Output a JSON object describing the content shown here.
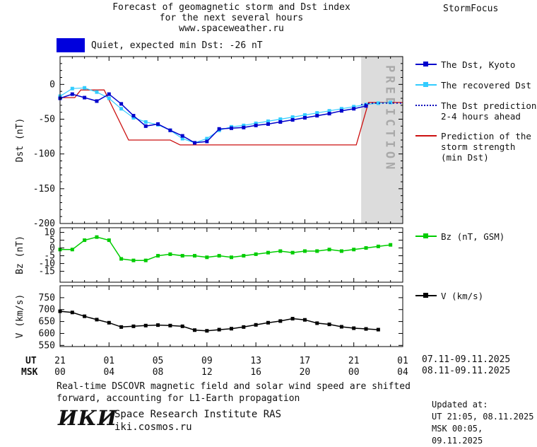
{
  "header": {
    "title_line1": "Forecast of geomagnetic storm and Dst index",
    "title_line2": "for the next several hours",
    "title_line3": "www.spaceweather.ru",
    "brand": "StormFocus"
  },
  "status": {
    "swatch_color": "#0000dd",
    "label": "Quiet, expected min Dst: -26 nT"
  },
  "legend": {
    "items": [
      {
        "name": "dst-kyoto",
        "color": "#0000cc",
        "style": "solid",
        "marker": true,
        "lines": [
          "The Dst, Kyoto"
        ]
      },
      {
        "name": "recovered-dst",
        "color": "#33ccff",
        "style": "solid",
        "marker": true,
        "lines": [
          "The recovered Dst"
        ]
      },
      {
        "name": "dst-prediction",
        "color": "#0000bb",
        "style": "dotted",
        "marker": false,
        "lines": [
          "The Dst prediction",
          "2-4 hours ahead"
        ]
      },
      {
        "name": "storm-strength",
        "color": "#cc1111",
        "style": "solid",
        "marker": false,
        "lines": [
          "Prediction of the",
          "storm strength",
          "(min Dst)"
        ]
      },
      {
        "name": "bz",
        "color": "#00cc00",
        "style": "solid",
        "marker": true,
        "lines": [
          "Bz (nT, GSM)"
        ]
      },
      {
        "name": "v",
        "color": "#000000",
        "style": "solid",
        "marker": true,
        "lines": [
          "V (km/s)"
        ]
      }
    ]
  },
  "chart_data": {
    "type": "line",
    "xaxis": {
      "xlim": [
        0,
        28
      ],
      "tick_positions": [
        0,
        4,
        8,
        12,
        16,
        20,
        24,
        28
      ],
      "ut_label": "UT",
      "msk_label": "MSK",
      "ut_tick_labels": [
        "21",
        "01",
        "05",
        "09",
        "13",
        "17",
        "21",
        "01"
      ],
      "msk_tick_labels": [
        "00",
        "04",
        "08",
        "12",
        "16",
        "20",
        "00",
        "04"
      ],
      "ut_date_range": "07.11-09.11.2025",
      "msk_date_range": "08.11-09.11.2025"
    },
    "panels": [
      {
        "name": "dst",
        "ylabel": "Dst (nT)",
        "ylim": [
          -200,
          40
        ],
        "yticks": [
          0,
          -50,
          -100,
          -150,
          -200
        ],
        "yminor_step": 10,
        "band": {
          "from": 24.6,
          "to": 28,
          "label": "PREDICTION",
          "fill": "#dcdcdc",
          "text_color": "#a9a9a9"
        },
        "series": [
          {
            "name": "storm-strength-prediction",
            "color": "#cc1111",
            "width": 1.3,
            "marker": false,
            "points": [
              [
                0,
                -19
              ],
              [
                1.2,
                -19
              ],
              [
                1.7,
                -8
              ],
              [
                3.6,
                -8
              ],
              [
                5.6,
                -80
              ],
              [
                9,
                -80
              ],
              [
                9.8,
                -87
              ],
              [
                24.2,
                -87
              ],
              [
                25.2,
                -26
              ],
              [
                28,
                -26
              ]
            ]
          },
          {
            "name": "recovered-dst",
            "color": "#33ccff",
            "width": 1.2,
            "marker": true,
            "points": [
              [
                0,
                -17
              ],
              [
                1,
                -6
              ],
              [
                2,
                -5
              ],
              [
                3,
                -11
              ],
              [
                4,
                -20
              ],
              [
                5,
                -35
              ],
              [
                6,
                -48
              ],
              [
                7,
                -54
              ],
              [
                8,
                -58
              ],
              [
                9,
                -66
              ],
              [
                10,
                -78
              ],
              [
                11,
                -84
              ],
              [
                12,
                -78
              ],
              [
                13,
                -66
              ],
              [
                14,
                -61
              ],
              [
                15,
                -59
              ],
              [
                16,
                -56
              ],
              [
                17,
                -53
              ],
              [
                18,
                -50
              ],
              [
                19,
                -47
              ],
              [
                20,
                -44
              ],
              [
                21,
                -41
              ],
              [
                22,
                -38
              ],
              [
                23,
                -35
              ],
              [
                24,
                -32
              ],
              [
                25,
                -29
              ],
              [
                26,
                -27
              ],
              [
                27,
                -26
              ]
            ]
          },
          {
            "name": "dst-kyoto",
            "color": "#0000cc",
            "width": 1.5,
            "marker": true,
            "points": [
              [
                0,
                -20
              ],
              [
                1,
                -14
              ],
              [
                2,
                -19
              ],
              [
                3,
                -24
              ],
              [
                4,
                -14
              ],
              [
                5,
                -28
              ],
              [
                6,
                -45
              ],
              [
                7,
                -60
              ],
              [
                8,
                -57
              ],
              [
                9,
                -66
              ],
              [
                10,
                -74
              ],
              [
                11,
                -84
              ],
              [
                12,
                -82
              ],
              [
                13,
                -64
              ],
              [
                14,
                -63
              ],
              [
                15,
                -62
              ],
              [
                16,
                -59
              ],
              [
                17,
                -57
              ],
              [
                18,
                -54
              ],
              [
                19,
                -51
              ],
              [
                20,
                -48
              ],
              [
                21,
                -45
              ],
              [
                22,
                -42
              ],
              [
                23,
                -38
              ],
              [
                24,
                -35
              ],
              [
                25,
                -31
              ]
            ]
          },
          {
            "name": "dst-prediction",
            "color": "#0000bb",
            "width": 1.5,
            "marker": false,
            "dash": "2,3",
            "points": [
              [
                24.6,
                -29
              ],
              [
                25.4,
                -27
              ],
              [
                28,
                -27
              ]
            ]
          }
        ]
      },
      {
        "name": "bz",
        "ylabel": "Bz (nT)",
        "ylim": [
          -22,
          13
        ],
        "yticks": [
          10,
          5,
          0,
          -5,
          -10,
          -15
        ],
        "series": [
          {
            "name": "bz-gsm",
            "color": "#00cc00",
            "width": 1.5,
            "marker": true,
            "points": [
              [
                0,
                -1
              ],
              [
                1,
                -1
              ],
              [
                2,
                5
              ],
              [
                3,
                7
              ],
              [
                4,
                5
              ],
              [
                5,
                -7
              ],
              [
                6,
                -8
              ],
              [
                7,
                -8
              ],
              [
                8,
                -5
              ],
              [
                9,
                -4
              ],
              [
                10,
                -5
              ],
              [
                11,
                -5
              ],
              [
                12,
                -6
              ],
              [
                13,
                -5
              ],
              [
                14,
                -6
              ],
              [
                15,
                -5
              ],
              [
                16,
                -4
              ],
              [
                17,
                -3
              ],
              [
                18,
                -2
              ],
              [
                19,
                -3
              ],
              [
                20,
                -2
              ],
              [
                21,
                -2
              ],
              [
                22,
                -1
              ],
              [
                23,
                -2
              ],
              [
                24,
                -1
              ],
              [
                25,
                0
              ],
              [
                26,
                1
              ],
              [
                27,
                2
              ]
            ]
          }
        ]
      },
      {
        "name": "v",
        "ylabel": "V (km/s)",
        "ylim": [
          545,
          800
        ],
        "yticks": [
          750,
          700,
          650,
          600,
          550
        ],
        "series": [
          {
            "name": "solar-wind-speed",
            "color": "#000000",
            "width": 1.5,
            "marker": true,
            "points": [
              [
                0,
                693
              ],
              [
                1,
                688
              ],
              [
                2,
                672
              ],
              [
                3,
                658
              ],
              [
                4,
                645
              ],
              [
                5,
                627
              ],
              [
                6,
                630
              ],
              [
                7,
                633
              ],
              [
                8,
                635
              ],
              [
                9,
                633
              ],
              [
                10,
                630
              ],
              [
                11,
                614
              ],
              [
                12,
                611
              ],
              [
                13,
                616
              ],
              [
                14,
                620
              ],
              [
                15,
                627
              ],
              [
                16,
                636
              ],
              [
                17,
                645
              ],
              [
                18,
                652
              ],
              [
                19,
                662
              ],
              [
                20,
                657
              ],
              [
                21,
                643
              ],
              [
                22,
                638
              ],
              [
                23,
                628
              ],
              [
                24,
                622
              ],
              [
                25,
                619
              ],
              [
                26,
                616
              ]
            ]
          }
        ]
      }
    ]
  },
  "footer": {
    "line1": "Real-time DSCOVR magnetic field and solar wind speed are shifted",
    "line2": "forward, accounting for L1-Earth propagation"
  },
  "org": {
    "logo": "ИКИ",
    "name": "Space Research Institute RAS",
    "site": "iki.cosmos.ru"
  },
  "updated": {
    "label": "Updated at:",
    "ut": "UT  21:05, 08.11.2025",
    "msk": "MSK 00:05, 09.11.2025"
  }
}
